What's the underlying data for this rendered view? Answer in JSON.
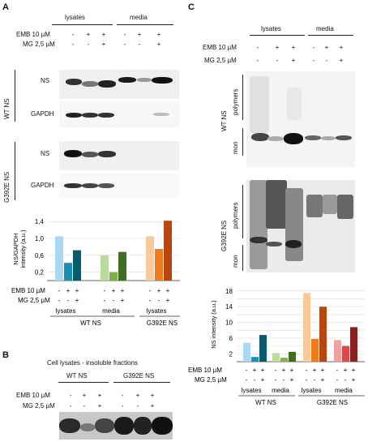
{
  "panels": {
    "A": "A",
    "B": "B",
    "C": "C"
  },
  "treatment_labels": {
    "emb": "EMB 10 µM",
    "mg": "MG 2,5 µM"
  },
  "group_labels": {
    "lysates": "lysates",
    "media": "media",
    "wt_ns": "WT NS",
    "g392e_ns": "G392E NS"
  },
  "signs": {
    "emb_row": [
      "-",
      "+",
      "+",
      "-",
      "+",
      "+"
    ],
    "mg_row": [
      "-",
      "-",
      "+",
      "-",
      "-",
      "+"
    ],
    "emb_row_3": [
      "-",
      "+",
      "+"
    ],
    "mg_row_3": [
      "-",
      "-",
      "+"
    ]
  },
  "blot_labels": {
    "ns": "NS",
    "gapdh": "GAPDH",
    "polymers": "polymers",
    "mon": "mon"
  },
  "panel_b_title": "Cell lysates - insoluble fractions",
  "colors": {
    "wt_lys": [
      "#a9d9f0",
      "#1a8fb0",
      "#0a5a6e"
    ],
    "wt_med": [
      "#b9dc9c",
      "#7bb344",
      "#3f6e22"
    ],
    "g392e_lys_A": [
      "#fcc89a",
      "#f07b1f",
      "#b8470f"
    ],
    "g392e_lys_C": [
      "#fcc89a",
      "#f07b1f",
      "#b8470f"
    ],
    "g392e_med_C": [
      "#f2a0a0",
      "#d94a4a",
      "#8a1f1f"
    ]
  },
  "chart_data": [
    {
      "type": "bar",
      "panel": "A",
      "ylabel": "NS/GAPDH intensity (a.u.)",
      "yticks": [
        "1,4",
        "1,0",
        "0,6",
        "0,2"
      ],
      "ytick_values": [
        1.4,
        1.0,
        0.6,
        0.2
      ],
      "ylim": [
        0,
        1.5
      ],
      "series": [
        {
          "name": "WT NS lysates",
          "values": [
            1.05,
            0.42,
            0.72
          ]
        },
        {
          "name": "WT NS media",
          "values": [
            0.6,
            0.2,
            0.68
          ]
        },
        {
          "name": "G392E NS lysates",
          "values": [
            1.05,
            0.75,
            1.42
          ]
        }
      ]
    },
    {
      "type": "bar",
      "panel": "C",
      "ylabel": "NS intensity (a.u.)",
      "yticks": [
        "18",
        "14",
        "10",
        "6",
        "2"
      ],
      "ytick_values": [
        18,
        14,
        10,
        6,
        2
      ],
      "gridlines": [
        18,
        16,
        14,
        12,
        10,
        8,
        6,
        4,
        2
      ],
      "ylim": [
        0,
        19
      ],
      "series": [
        {
          "name": "WT NS lysates",
          "values": [
            4.8,
            1.2,
            6.8
          ]
        },
        {
          "name": "WT NS media",
          "values": [
            2.2,
            1.0,
            2.5
          ]
        },
        {
          "name": "G392E NS lysates",
          "values": [
            17.5,
            5.8,
            14.0
          ]
        },
        {
          "name": "G392E NS media",
          "values": [
            5.5,
            4.0,
            8.8
          ]
        }
      ]
    }
  ]
}
